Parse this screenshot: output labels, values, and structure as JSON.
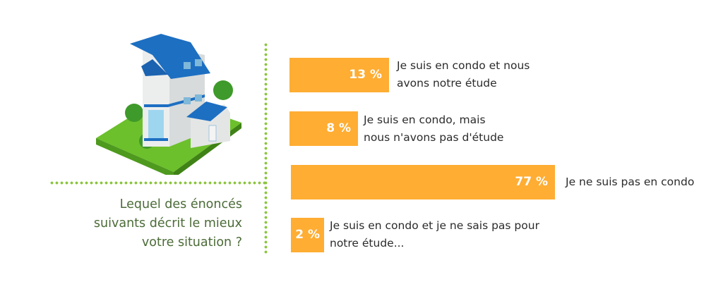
{
  "question": [
    "Lequel des énoncés",
    "suivants décrit le mieux",
    "votre situation ?"
  ],
  "colors": {
    "bar": "#ffad33",
    "divider": "#8cc63f",
    "question_text": "#4b6b37"
  },
  "illustration": "house-icon",
  "chart_data": {
    "type": "bar",
    "orientation": "horizontal",
    "categories": [
      "Je suis en condo et nous avons notre étude",
      "Je suis en condo, mais nous n'avons pas d'étude",
      "Je ne suis pas en condo",
      "Je suis en condo et je ne sais pas pour notre étude..."
    ],
    "values": [
      13,
      8,
      77,
      2
    ],
    "value_labels": [
      "13 %",
      "8 %",
      "77 %",
      "2 %"
    ],
    "label_lines": [
      [
        "Je suis en condo et nous",
        "avons notre étude"
      ],
      [
        "Je suis en condo, mais",
        "nous n'avons pas d'étude"
      ],
      [
        "Je ne suis pas en condo"
      ],
      [
        "Je suis en condo et je ne sais pas pour",
        "notre étude..."
      ]
    ],
    "unit": "%"
  }
}
